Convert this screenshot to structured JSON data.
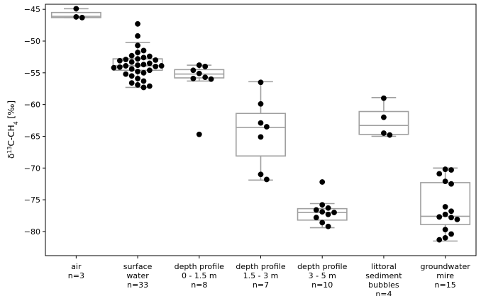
{
  "chart_data": {
    "type": "box",
    "ylabel": "δ13C-CH4 [‰]",
    "ylim": [
      -83.8,
      -44.2
    ],
    "yticks": [
      -45,
      -50,
      -55,
      -60,
      -65,
      -70,
      -75,
      -80
    ],
    "grid": false,
    "categories": [
      {
        "label": [
          "air",
          "n=3"
        ],
        "n": 3,
        "box": {
          "q1": -46.3,
          "median": -46.1,
          "q3": -45.5,
          "whislo": -46.3,
          "whishi": -44.9
        },
        "outliers": [],
        "points": [
          -44.9,
          -46.2,
          -46.3
        ]
      },
      {
        "label": [
          "surface",
          "water",
          "n=33"
        ],
        "n": 33,
        "box": {
          "q1": -54.6,
          "median": -53.9,
          "q3": -52.8,
          "whislo": -57.3,
          "whishi": -50.2
        },
        "outliers": [
          -47.3
        ],
        "points": [
          -47.3,
          -49.2,
          -50.7,
          -51.5,
          -51.8,
          -52.3,
          -52.4,
          -52.6,
          -52.8,
          -52.9,
          -53.0,
          -53.1,
          -53.3,
          -53.5,
          -53.7,
          -53.8,
          -53.9,
          -53.9,
          -54.0,
          -54.1,
          -54.2,
          -54.4,
          -54.6,
          -54.8,
          -55.0,
          -55.2,
          -55.5,
          -55.9,
          -56.3,
          -56.6,
          -56.9,
          -57.1,
          -57.3
        ]
      },
      {
        "label": [
          "depth profile",
          "0 - 1.5 m",
          "n=8"
        ],
        "n": 8,
        "box": {
          "q1": -55.8,
          "median": -55.2,
          "q3": -54.5,
          "whislo": -56.3,
          "whishi": -53.8
        },
        "outliers": [
          -64.7
        ],
        "points": [
          -53.8,
          -54.0,
          -54.6,
          -55.1,
          -55.7,
          -55.9,
          -56.0,
          -64.7
        ]
      },
      {
        "label": [
          "depth profile",
          "1.5 - 3 m",
          "n=7"
        ],
        "n": 7,
        "box": {
          "q1": -68.1,
          "median": -63.6,
          "q3": -61.4,
          "whislo": -71.9,
          "whishi": -56.4
        },
        "outliers": [],
        "points": [
          -56.5,
          -59.9,
          -62.9,
          -63.5,
          -65.1,
          -71.0,
          -71.8
        ]
      },
      {
        "label": [
          "depth profile",
          "3 - 5 m",
          "n=10"
        ],
        "n": 10,
        "box": {
          "q1": -78.2,
          "median": -77.0,
          "q3": -76.4,
          "whislo": -79.4,
          "whishi": -75.6
        },
        "outliers": [
          -72.2
        ],
        "points": [
          -72.2,
          -75.8,
          -76.3,
          -76.6,
          -76.9,
          -77.0,
          -77.3,
          -77.8,
          -78.6,
          -79.2
        ]
      },
      {
        "label": [
          "littoral",
          "sediment",
          "bubbles",
          "n=4"
        ],
        "n": 4,
        "box": {
          "q1": -64.7,
          "median": -63.3,
          "q3": -61.1,
          "whislo": -65.0,
          "whishi": -58.9
        },
        "outliers": [],
        "points": [
          -59.0,
          -62.0,
          -64.5,
          -64.8
        ]
      },
      {
        "label": [
          "groundwater",
          "mire",
          "n=15"
        ],
        "n": 15,
        "box": {
          "q1": -78.9,
          "median": -77.6,
          "q3": -72.3,
          "whislo": -81.5,
          "whishi": -70.0
        },
        "outliers": [],
        "points": [
          -70.2,
          -70.3,
          -70.9,
          -72.1,
          -72.5,
          -76.1,
          -76.8,
          -77.3,
          -77.7,
          -77.8,
          -78.1,
          -79.7,
          -80.4,
          -81.0,
          -81.3
        ]
      }
    ],
    "colors": {
      "box": "#a0a0a0",
      "point": "#000000",
      "axis": "#000000"
    }
  }
}
